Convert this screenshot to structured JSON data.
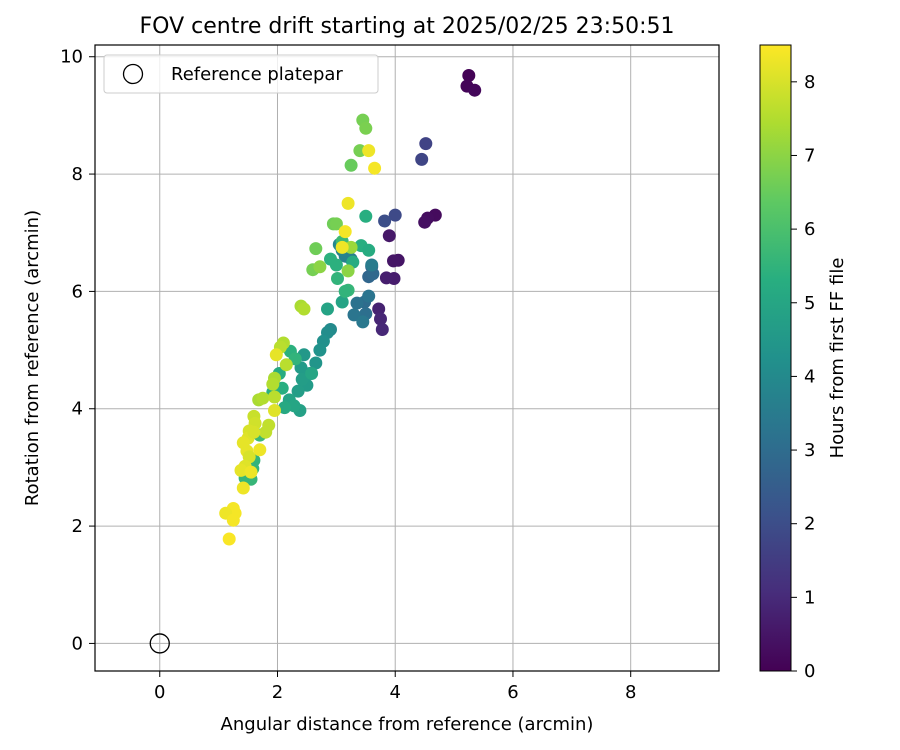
{
  "chart_data": {
    "type": "scatter",
    "title": "FOV centre drift starting at 2025/02/25 23:50:51",
    "xlabel": "Angular distance from reference (arcmin)",
    "ylabel": "Rotation from reference (arcmin)",
    "xlim": [
      -1.1,
      9.5
    ],
    "ylim": [
      -0.47,
      10.2
    ],
    "xticks": [
      0,
      2,
      4,
      6,
      8
    ],
    "yticks": [
      0,
      2,
      4,
      6,
      8,
      10
    ],
    "grid": true,
    "legend": {
      "placement": "upper-left",
      "entries": [
        "Reference platepar"
      ]
    },
    "reference_point": {
      "label": "Reference platepar",
      "x": 0,
      "y": 0
    },
    "colorbar": {
      "label": "Hours from first FF file",
      "colormap": "viridis",
      "range": [
        0,
        8.5
      ],
      "ticks": [
        0,
        1,
        2,
        3,
        4,
        5,
        6,
        7,
        8
      ]
    },
    "series": [
      {
        "points": [
          [
            5.25,
            9.68,
            0.05
          ],
          [
            5.22,
            9.5,
            0.1
          ],
          [
            5.35,
            9.43,
            0.15
          ],
          [
            4.68,
            7.3,
            0.25
          ],
          [
            4.55,
            7.25,
            0.3
          ],
          [
            4.5,
            7.18,
            0.35
          ],
          [
            4.05,
            6.53,
            0.45
          ],
          [
            3.97,
            6.52,
            0.5
          ],
          [
            3.9,
            6.95,
            0.55
          ],
          [
            3.98,
            6.22,
            0.65
          ],
          [
            3.85,
            6.23,
            0.7
          ],
          [
            3.72,
            5.7,
            0.8
          ],
          [
            3.75,
            5.53,
            0.9
          ],
          [
            3.78,
            5.35,
            0.95
          ],
          [
            4.52,
            8.52,
            1.7
          ],
          [
            4.45,
            8.25,
            1.75
          ],
          [
            4.0,
            7.3,
            1.9
          ],
          [
            3.82,
            7.2,
            2.0
          ],
          [
            3.6,
            6.42,
            2.7
          ],
          [
            3.55,
            6.25,
            2.8
          ],
          [
            3.62,
            6.3,
            2.9
          ],
          [
            3.48,
            5.82,
            3.0
          ],
          [
            3.5,
            5.62,
            3.1
          ],
          [
            3.35,
            5.8,
            3.2
          ],
          [
            3.55,
            5.92,
            3.25
          ],
          [
            3.3,
            5.6,
            3.3
          ],
          [
            3.45,
            5.48,
            3.4
          ],
          [
            3.6,
            6.45,
            3.5
          ],
          [
            3.25,
            6.55,
            3.6
          ],
          [
            3.15,
            6.6,
            3.7
          ],
          [
            3.1,
            6.7,
            3.8
          ],
          [
            3.05,
            6.8,
            3.9
          ],
          [
            2.9,
            5.35,
            4.0
          ],
          [
            2.85,
            5.3,
            4.1
          ],
          [
            2.78,
            5.15,
            4.2
          ],
          [
            2.72,
            5.0,
            4.3
          ],
          [
            2.65,
            4.78,
            4.4
          ],
          [
            2.55,
            4.6,
            4.5
          ],
          [
            2.5,
            4.4,
            4.6
          ],
          [
            2.35,
            4.3,
            4.7
          ],
          [
            2.38,
            3.97,
            4.8
          ],
          [
            2.2,
            4.15,
            4.9
          ],
          [
            2.28,
            4.05,
            5.0
          ],
          [
            2.45,
            4.92,
            4.5
          ],
          [
            2.4,
            4.7,
            4.6
          ],
          [
            2.42,
            4.5,
            4.7
          ],
          [
            2.12,
            4.02,
            5.1
          ],
          [
            2.03,
            4.6,
            5.2
          ],
          [
            2.08,
            4.35,
            5.3
          ],
          [
            1.92,
            4.28,
            5.35
          ],
          [
            1.6,
            3.12,
            5.5
          ],
          [
            1.45,
            2.82,
            5.6
          ],
          [
            1.55,
            2.8,
            5.6
          ],
          [
            1.58,
            2.98,
            5.5
          ],
          [
            1.7,
            3.55,
            5.7
          ],
          [
            2.85,
            5.7,
            4.9
          ],
          [
            3.1,
            5.82,
            4.9
          ],
          [
            3.28,
            6.5,
            5.2
          ],
          [
            3.42,
            6.78,
            5.3
          ],
          [
            3.5,
            7.28,
            5.3
          ],
          [
            3.55,
            6.7,
            5.2
          ],
          [
            3.2,
            6.02,
            5.6
          ],
          [
            3.15,
            6.0,
            5.5
          ],
          [
            3.02,
            6.22,
            5.5
          ],
          [
            3.0,
            6.45,
            5.4
          ],
          [
            2.9,
            6.55,
            5.4
          ],
          [
            3.1,
            6.85,
            5.7
          ],
          [
            2.58,
            4.6,
            5.0
          ],
          [
            2.22,
            4.98,
            5.4
          ],
          [
            2.3,
            4.85,
            5.5
          ],
          [
            3.25,
            8.15,
            6.5
          ],
          [
            3.45,
            8.92,
            6.7
          ],
          [
            3.5,
            8.78,
            6.75
          ],
          [
            3.4,
            8.4,
            6.7
          ],
          [
            2.95,
            7.15,
            6.6
          ],
          [
            3.0,
            7.15,
            6.7
          ],
          [
            2.65,
            6.73,
            6.6
          ],
          [
            2.6,
            6.37,
            6.7
          ],
          [
            2.72,
            6.42,
            7.0
          ],
          [
            3.2,
            6.35,
            7.0
          ],
          [
            3.25,
            6.75,
            7.2
          ],
          [
            2.4,
            5.75,
            7.4
          ],
          [
            2.45,
            5.7,
            7.5
          ],
          [
            2.1,
            5.12,
            7.5
          ],
          [
            2.05,
            5.05,
            7.6
          ],
          [
            2.15,
            4.75,
            7.6
          ],
          [
            1.95,
            4.52,
            7.4
          ],
          [
            1.92,
            4.42,
            7.5
          ],
          [
            1.68,
            4.15,
            7.4
          ],
          [
            1.75,
            4.18,
            7.5
          ],
          [
            1.85,
            3.72,
            7.7
          ],
          [
            1.95,
            4.2,
            7.6
          ],
          [
            1.6,
            3.87,
            7.8
          ],
          [
            1.62,
            3.75,
            7.9
          ],
          [
            1.8,
            3.6,
            7.7
          ],
          [
            1.52,
            3.62,
            8.0
          ],
          [
            1.5,
            3.5,
            8.1
          ],
          [
            1.42,
            3.42,
            8.2
          ],
          [
            1.48,
            3.28,
            8.2
          ],
          [
            1.52,
            3.18,
            8.0
          ],
          [
            1.45,
            3.02,
            8.1
          ],
          [
            1.38,
            2.95,
            8.2
          ],
          [
            1.55,
            2.92,
            8.3
          ],
          [
            1.7,
            3.3,
            8.3
          ],
          [
            1.42,
            2.65,
            8.3
          ],
          [
            1.25,
            2.3,
            8.4
          ],
          [
            1.28,
            2.22,
            8.4
          ],
          [
            1.12,
            2.22,
            8.3
          ],
          [
            1.25,
            2.1,
            8.4
          ],
          [
            1.18,
            1.78,
            8.45
          ],
          [
            3.2,
            7.5,
            8.3
          ],
          [
            3.15,
            7.02,
            8.4
          ],
          [
            3.55,
            8.4,
            8.3
          ],
          [
            3.65,
            8.1,
            8.4
          ],
          [
            3.1,
            6.75,
            8.3
          ],
          [
            1.98,
            4.92,
            8.2
          ],
          [
            1.95,
            3.97,
            8.1
          ],
          [
            1.6,
            3.6,
            8.0
          ]
        ]
      }
    ]
  }
}
